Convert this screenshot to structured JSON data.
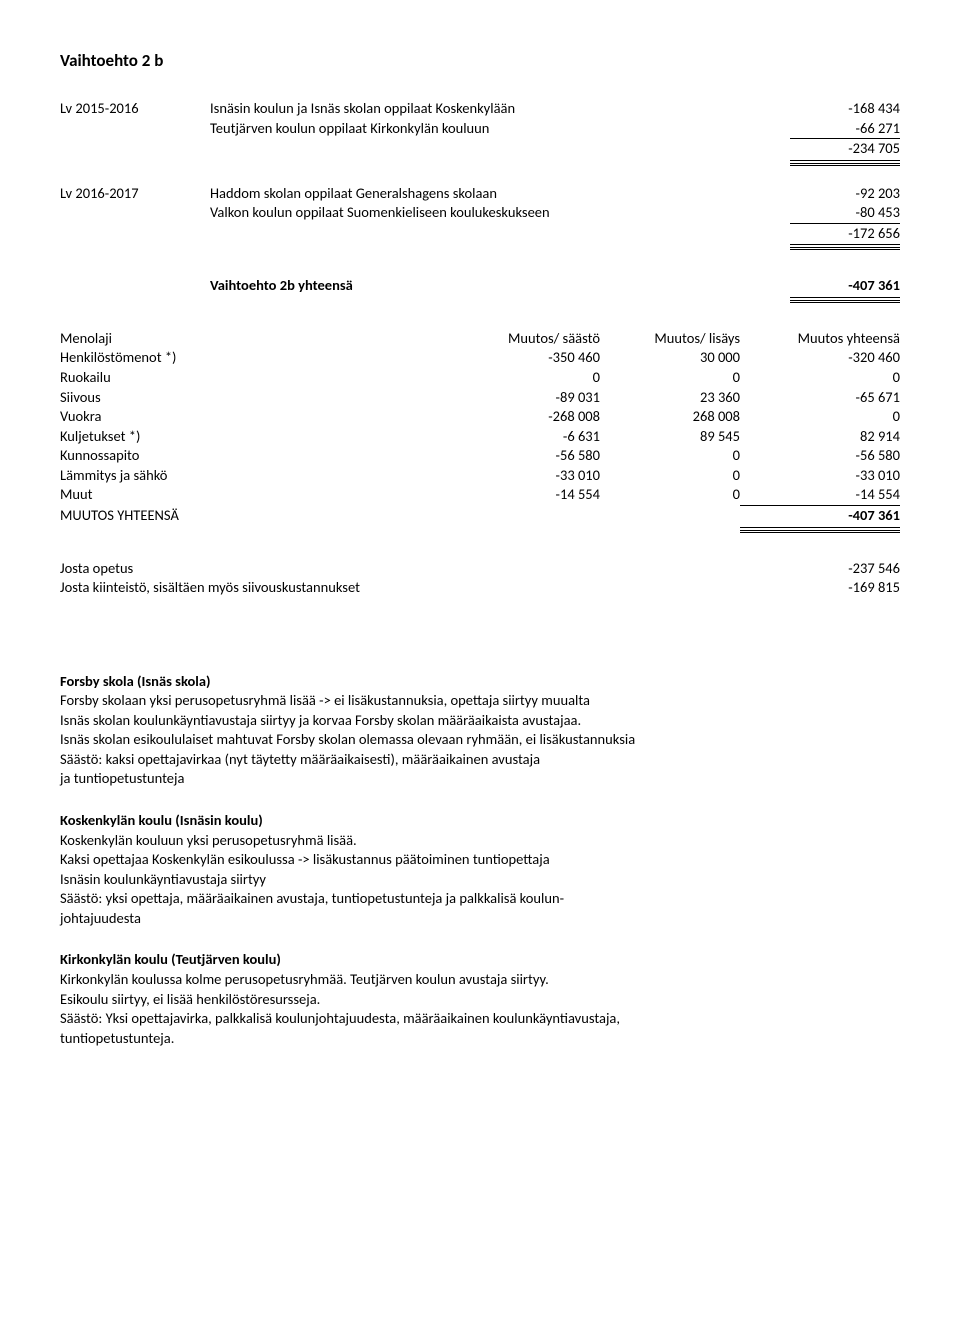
{
  "title": "Vaihtoehto 2 b",
  "block1": {
    "lv": "Lv 2015-2016",
    "lines": [
      {
        "label": "Isnäsin koulun ja Isnäs skolan oppilaat Koskenkylään",
        "val": "-168 434"
      },
      {
        "label": "Teutjärven koulun oppilaat Kirkonkylän kouluun",
        "val": "-66 271"
      }
    ],
    "total": "-234 705"
  },
  "block2": {
    "lv": "Lv 2016-2017",
    "lines": [
      {
        "label": "Haddom skolan oppilaat Generalshagens skolaan",
        "val": "-92 203"
      },
      {
        "label": "Valkon koulun oppilaat Suomenkieliseen koulukeskukseen",
        "val": "-80 453"
      }
    ],
    "total": "-172 656"
  },
  "grand": {
    "label": "Vaihtoehto 2b yhteensä",
    "val": "-407 361"
  },
  "table": {
    "headers": [
      "Menolaji",
      "Muutos/ säästö",
      "Muutos/ lisäys",
      "Muutos yhteensä"
    ],
    "rows": [
      [
        "Henkilöstömenot *)",
        "-350 460",
        "30 000",
        "-320 460"
      ],
      [
        "Ruokailu",
        "0",
        "0",
        "0"
      ],
      [
        "Siivous",
        "-89 031",
        "23 360",
        "-65 671"
      ],
      [
        "Vuokra",
        "-268 008",
        "268 008",
        "0"
      ],
      [
        "Kuljetukset *)",
        "-6 631",
        "89 545",
        "82 914"
      ],
      [
        "Kunnossapito",
        "-56 580",
        "0",
        "-56 580"
      ],
      [
        "Lämmitys ja sähkö",
        "-33 010",
        "0",
        "-33 010"
      ],
      [
        "Muut",
        "-14 554",
        "0",
        "-14 554"
      ]
    ],
    "total": {
      "label": "MUUTOS YHTEENSÄ",
      "val": "-407 361"
    }
  },
  "summary": [
    {
      "label": "Josta opetus",
      "val": "-237 546"
    },
    {
      "label": "Josta kiinteistö, sisältäen myös siivouskustannukset",
      "val": "-169 815"
    }
  ],
  "sections": [
    {
      "title": "Forsby skola (Isnäs skola)",
      "lines": [
        "Forsby skolaan yksi perusopetusryhmä lisää -> ei lisäkustannuksia, opettaja siirtyy muualta",
        "Isnäs skolan koulunkäyntiavustaja siirtyy ja korvaa Forsby skolan määräaikaista avustajaa.",
        "Isnäs skolan esikoululaiset mahtuvat Forsby skolan olemassa olevaan ryhmään, ei lisäkustannuksia",
        "Säästö: kaksi opettajavirkaa (nyt täytetty määräaikaisesti), määräaikainen avustaja",
        "ja tuntiopetustunteja"
      ]
    },
    {
      "title": "Koskenkylän koulu (Isnäsin koulu)",
      "lines": [
        "Koskenkylän kouluun yksi perusopetusryhmä lisää.",
        "Kaksi opettajaa Koskenkylän esikoulussa -> lisäkustannus päätoiminen tuntiopettaja",
        "Isnäsin koulunkäyntiavustaja siirtyy",
        "Säästö: yksi opettaja, määräaikainen avustaja,  tuntiopetustunteja ja palkkalisä koulun-",
        "johtajuudesta"
      ]
    },
    {
      "title": "Kirkonkylän koulu (Teutjärven koulu)",
      "lines": [
        "Kirkonkylän koulussa kolme perusopetusryhmää. Teutjärven koulun avustaja siirtyy.",
        "Esikoulu siirtyy, ei lisää henkilöstöresursseja.",
        "Säästö: Yksi opettajavirka, palkkalisä koulunjohtajuudesta, määräaikainen koulunkäyntiavustaja,",
        "tuntiopetustunteja."
      ]
    }
  ]
}
